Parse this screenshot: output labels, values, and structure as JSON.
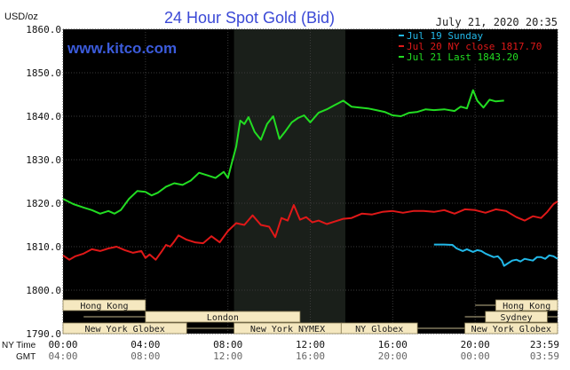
{
  "page": {
    "background": "#ffffff",
    "plot_background": "#000000",
    "session_band_color": "#1a1f1a",
    "session_label_background": "#f5e8c0",
    "session_label_text": "#1a1a1a"
  },
  "chart_data": {
    "type": "line",
    "title": "24 Hour Spot Gold (Bid)",
    "title_color": "#3b49d6",
    "unit_label": "USD/oz",
    "timestamp": "July 21, 2020 20:35",
    "watermark": "www.kitco.com",
    "watermark_color": "#3b5bdb",
    "legend_placement": "top-right",
    "grid": true,
    "ylim": [
      1790,
      1860
    ],
    "y_ticks": [
      {
        "value": 1790,
        "label": "1790.0"
      },
      {
        "value": 1800,
        "label": "1800.0"
      },
      {
        "value": 1810,
        "label": "1810.0"
      },
      {
        "value": 1820,
        "label": "1820.0"
      },
      {
        "value": 1830,
        "label": "1830.0"
      },
      {
        "value": 1840,
        "label": "1840.0"
      },
      {
        "value": 1850,
        "label": "1850.0"
      },
      {
        "value": 1860,
        "label": "1860.0"
      }
    ],
    "xlim": [
      0,
      24
    ],
    "x_axis_names": {
      "ny": "NY Time",
      "gmt": "GMT"
    },
    "x_ticks": [
      {
        "value": 0,
        "ny": "00:00",
        "gmt": "04:00"
      },
      {
        "value": 4,
        "ny": "04:00",
        "gmt": "08:00"
      },
      {
        "value": 8,
        "ny": "08:00",
        "gmt": "12:00"
      },
      {
        "value": 12,
        "ny": "12:00",
        "gmt": "16:00"
      },
      {
        "value": 16,
        "ny": "16:00",
        "gmt": "20:00"
      },
      {
        "value": 20,
        "ny": "20:00",
        "gmt": "00:00"
      },
      {
        "value": 24,
        "ny": "23:59",
        "gmt": "03:59"
      }
    ],
    "highlight_range": [
      8.3,
      13.7
    ],
    "series": [
      {
        "name": "Jul 19 Sunday",
        "legend": "Jul 19 Sunday",
        "color": "#22b8e8",
        "x": [
          18.0,
          18.5,
          18.9,
          19.1,
          19.4,
          19.6,
          19.9,
          20.1,
          20.3,
          20.5,
          20.7,
          20.9,
          21.1,
          21.3,
          21.4,
          21.6,
          21.8,
          22.0,
          22.2,
          22.4,
          22.6,
          22.8,
          23.0,
          23.2,
          23.4,
          23.6,
          23.8,
          24.0
        ],
        "y": [
          1810.5,
          1810.5,
          1810.4,
          1809.6,
          1809.0,
          1809.4,
          1808.8,
          1809.2,
          1809.0,
          1808.4,
          1808.0,
          1807.6,
          1807.8,
          1806.8,
          1805.6,
          1806.2,
          1806.8,
          1807.0,
          1806.6,
          1807.2,
          1807.0,
          1806.8,
          1807.6,
          1807.6,
          1807.2,
          1808.0,
          1807.8,
          1807.2
        ]
      },
      {
        "name": "Jul 20 NY close 1817.70",
        "legend": "Jul 20 NY close 1817.70",
        "color": "#e01818",
        "x": [
          0.0,
          0.3,
          0.6,
          1.0,
          1.4,
          1.8,
          2.2,
          2.6,
          3.0,
          3.4,
          3.8,
          4.0,
          4.2,
          4.5,
          4.8,
          5.0,
          5.2,
          5.4,
          5.6,
          6.0,
          6.4,
          6.8,
          7.2,
          7.6,
          8.0,
          8.4,
          8.8,
          9.2,
          9.6,
          10.0,
          10.3,
          10.6,
          10.9,
          11.2,
          11.5,
          11.8,
          12.1,
          12.4,
          12.8,
          13.2,
          13.6,
          14.0,
          14.5,
          15.0,
          15.5,
          16.0,
          16.5,
          17.0,
          17.5,
          18.0,
          18.5,
          19.0,
          19.5,
          20.0,
          20.5,
          21.0,
          21.5,
          22.0,
          22.4,
          22.8,
          23.2,
          23.5,
          23.8,
          24.0
        ],
        "y": [
          1808.0,
          1807.0,
          1807.8,
          1808.4,
          1809.4,
          1809.0,
          1809.6,
          1810.0,
          1809.2,
          1808.6,
          1809.0,
          1807.4,
          1808.2,
          1807.0,
          1809.0,
          1810.4,
          1810.0,
          1811.2,
          1812.6,
          1811.6,
          1811.0,
          1810.8,
          1812.4,
          1811.0,
          1813.6,
          1815.4,
          1815.0,
          1817.2,
          1815.0,
          1814.6,
          1812.2,
          1816.6,
          1816.0,
          1819.6,
          1816.2,
          1816.8,
          1815.6,
          1816.0,
          1815.2,
          1815.8,
          1816.4,
          1816.6,
          1817.6,
          1817.4,
          1818.0,
          1818.2,
          1817.8,
          1818.2,
          1818.2,
          1818.0,
          1818.4,
          1817.6,
          1818.6,
          1818.4,
          1817.8,
          1818.6,
          1818.2,
          1816.8,
          1816.0,
          1817.0,
          1816.6,
          1818.0,
          1819.8,
          1820.4
        ]
      },
      {
        "name": "Jul 21 Last 1843.20",
        "legend": "Jul 21 Last 1843.20",
        "color": "#22dd22",
        "x": [
          0.0,
          0.5,
          1.0,
          1.4,
          1.8,
          2.2,
          2.5,
          2.8,
          3.2,
          3.6,
          4.0,
          4.3,
          4.6,
          5.0,
          5.4,
          5.8,
          6.2,
          6.6,
          7.0,
          7.4,
          7.8,
          8.0,
          8.2,
          8.4,
          8.6,
          8.8,
          9.0,
          9.3,
          9.6,
          9.9,
          10.2,
          10.5,
          10.8,
          11.1,
          11.4,
          11.7,
          12.0,
          12.4,
          12.8,
          13.2,
          13.6,
          14.0,
          14.4,
          14.8,
          15.2,
          15.6,
          16.0,
          16.4,
          16.8,
          17.2,
          17.6,
          18.0,
          18.5,
          19.0,
          19.3,
          19.6,
          19.9,
          20.1,
          20.4,
          20.7,
          21.0,
          21.4
        ],
        "y": [
          1821.0,
          1819.8,
          1819.0,
          1818.4,
          1817.6,
          1818.2,
          1817.6,
          1818.4,
          1821.0,
          1822.8,
          1822.6,
          1821.8,
          1822.4,
          1823.8,
          1824.6,
          1824.2,
          1825.2,
          1827.0,
          1826.4,
          1825.8,
          1827.2,
          1825.8,
          1829.4,
          1833.0,
          1839.0,
          1838.2,
          1839.8,
          1836.4,
          1834.6,
          1838.2,
          1840.0,
          1834.8,
          1836.6,
          1838.6,
          1839.6,
          1840.2,
          1838.6,
          1840.8,
          1841.6,
          1842.6,
          1843.6,
          1842.2,
          1842.0,
          1841.8,
          1841.4,
          1841.0,
          1840.2,
          1840.0,
          1840.8,
          1841.0,
          1841.6,
          1841.4,
          1841.6,
          1841.2,
          1842.2,
          1841.8,
          1846.0,
          1843.6,
          1842.0,
          1843.8,
          1843.4,
          1843.6
        ]
      }
    ],
    "sessions": [
      {
        "label": "Hong Kong",
        "row": 0,
        "start": 0.0,
        "end": 4.0,
        "label_start": 0.0,
        "label_end": 4.0
      },
      {
        "label": "Hong Kong",
        "row": 0,
        "start": 20.0,
        "end": 24.0,
        "label_start": 21.0,
        "label_end": 24.0
      },
      {
        "label": "London",
        "row": 1,
        "start": 1.0,
        "end": 11.5,
        "label_start": 4.0,
        "label_end": 11.5
      },
      {
        "label": "Sydney",
        "row": 1,
        "start": 19.5,
        "end": 24.0,
        "label_start": 20.5,
        "label_end": 23.5
      },
      {
        "label": "New York Globex",
        "row": 2,
        "start": 0.0,
        "end": 24.0,
        "label_start": 0.0,
        "label_end": 6.0
      },
      {
        "label": "New York NYMEX",
        "row": 2,
        "start": 8.3,
        "end": 13.5,
        "label_start": 8.3,
        "label_end": 13.5
      },
      {
        "label": "NY Globex",
        "row": 2,
        "start": 13.5,
        "end": 17.2,
        "label_start": 13.5,
        "label_end": 17.2
      },
      {
        "label": "New York Globex",
        "row": 2,
        "start": 19.5,
        "end": 24.0,
        "label_start": 19.5,
        "label_end": 24.0
      }
    ]
  }
}
